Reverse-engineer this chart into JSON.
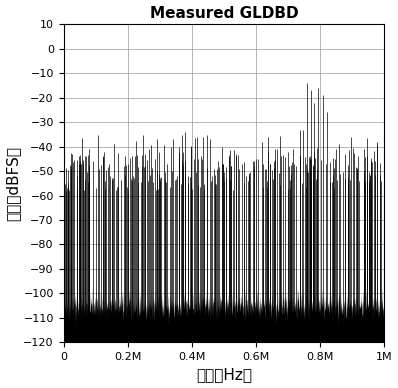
{
  "title": "Measured GLDBD",
  "xlabel": "频率（Hz）",
  "ylabel": "幅度（dBFS）",
  "xlim": [
    0,
    1000000
  ],
  "ylim": [
    -120,
    10
  ],
  "yticks": [
    10,
    0,
    -10,
    -20,
    -30,
    -40,
    -50,
    -60,
    -70,
    -80,
    -90,
    -100,
    -110,
    -120
  ],
  "xtick_vals": [
    0,
    200000,
    400000,
    600000,
    800000,
    1000000
  ],
  "xtick_labels": [
    "0",
    "0.2M",
    "0.4M",
    "0.6M",
    "0.8M",
    "1M"
  ],
  "noise_floor_mean": -105,
  "noise_floor_std": 3,
  "seed": 42,
  "background_color": "#ffffff",
  "bar_color": "#000000",
  "title_fontsize": 11,
  "label_fontsize": 11,
  "tick_fontsize": 8,
  "N_spikes": 300,
  "strong_spike_freqs": [
    748000,
    760000,
    772000,
    782000,
    795000,
    808000,
    820000
  ],
  "strong_spike_amps": [
    -33,
    -14,
    -17,
    -22,
    -16,
    -19,
    -26
  ],
  "notable_freqs": [
    28000,
    52000,
    78000,
    125000,
    158000,
    192000,
    218000,
    255000,
    298000,
    342000,
    378000,
    398000,
    418000,
    458000,
    498000,
    538000,
    558000,
    600000,
    618000,
    638000,
    658000,
    678000,
    700000,
    718000,
    738000,
    858000,
    878000,
    898000,
    918000,
    938000,
    958000,
    978000
  ],
  "notable_amps": [
    -43,
    -46,
    -41,
    -42,
    -39,
    -44,
    -52,
    -43,
    -51,
    -37,
    -34,
    -40,
    -45,
    -37,
    -47,
    -43,
    -47,
    -45,
    -38,
    -36,
    -41,
    -44,
    -42,
    -47,
    -33,
    -39,
    -43,
    -36,
    -44,
    -41,
    -46,
    -38
  ]
}
